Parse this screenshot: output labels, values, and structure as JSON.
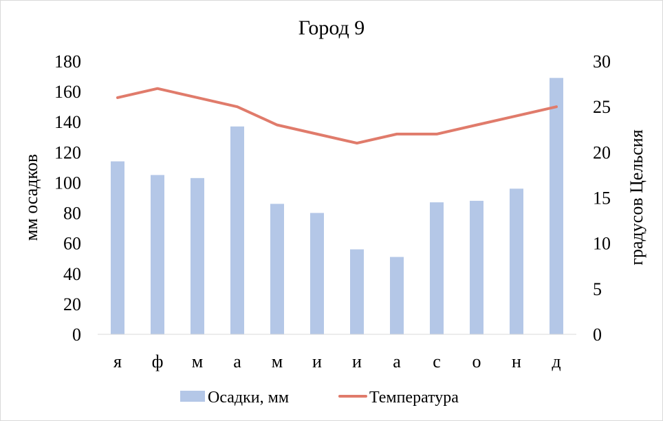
{
  "chart_data": {
    "type": "bar",
    "title": "Город 9",
    "categories": [
      "я",
      "ф",
      "м",
      "а",
      "м",
      "и",
      "и",
      "а",
      "с",
      "о",
      "н",
      "д"
    ],
    "series": [
      {
        "name": "Осадки, мм",
        "type": "bar",
        "axis": "left",
        "color": "#b4c7e7",
        "values": [
          114,
          105,
          103,
          137,
          86,
          80,
          56,
          51,
          87,
          88,
          96,
          169
        ]
      },
      {
        "name": "Температура",
        "type": "line",
        "axis": "right",
        "color": "#e07b6b",
        "values": [
          26,
          27,
          26,
          25,
          23,
          22,
          21,
          22,
          22,
          23,
          24,
          25
        ]
      }
    ],
    "ylabel": "мм осадков",
    "y2label": "градусов Цельсия",
    "ylim": [
      0,
      180
    ],
    "y2lim": [
      0,
      30
    ],
    "yticks": [
      "0",
      "20",
      "40",
      "60",
      "80",
      "100",
      "120",
      "140",
      "160",
      "180"
    ],
    "y2ticks": [
      "0",
      "5",
      "10",
      "15",
      "20",
      "25",
      "30"
    ],
    "grid": false,
    "legend": "bottom"
  }
}
